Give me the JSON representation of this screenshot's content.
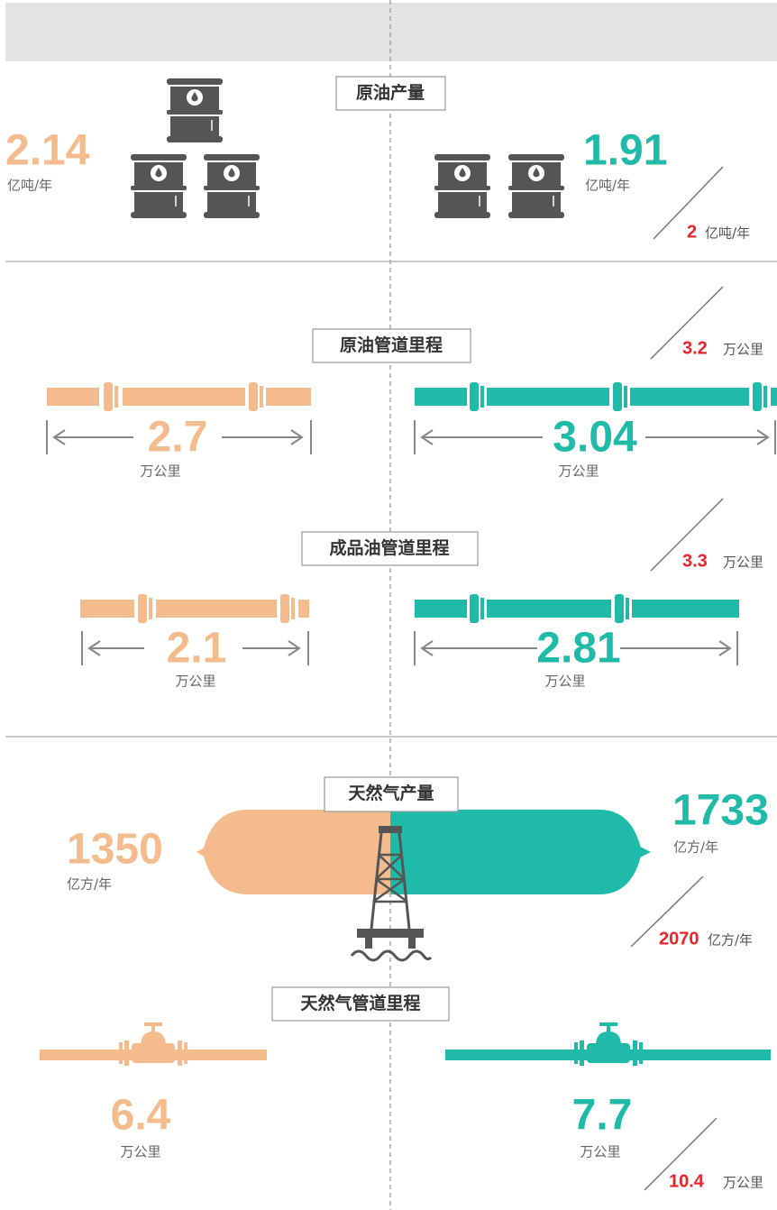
{
  "sections": [
    {
      "title": "原油产量",
      "left": {
        "value": "2.14",
        "unit": "亿吨/年"
      },
      "right": {
        "value": "1.91",
        "unit": "亿吨/年"
      },
      "target": {
        "value": "2",
        "unit": "亿吨/年"
      }
    },
    {
      "title": "原油管道里程",
      "left": {
        "value": "2.7",
        "unit": "万公里"
      },
      "right": {
        "value": "3.04",
        "unit": "万公里"
      },
      "target": {
        "value": "3.2",
        "unit": "万公里"
      }
    },
    {
      "title": "成品油管道里程",
      "left": {
        "value": "2.1",
        "unit": "万公里"
      },
      "right": {
        "value": "2.81",
        "unit": "万公里"
      },
      "target": {
        "value": "3.3",
        "unit": "万公里"
      }
    },
    {
      "title": "天然气产量",
      "left": {
        "value": "1350",
        "unit": "亿方/年"
      },
      "right": {
        "value": "1733",
        "unit": "亿方/年"
      },
      "target": {
        "value": "2070",
        "unit": "亿方/年"
      }
    },
    {
      "title": "天然气管道里程",
      "left": {
        "value": "6.4",
        "unit": "万公里"
      },
      "right": {
        "value": "7.7",
        "unit": "万公里"
      },
      "target": {
        "value": "10.4",
        "unit": "万公里"
      }
    }
  ]
}
